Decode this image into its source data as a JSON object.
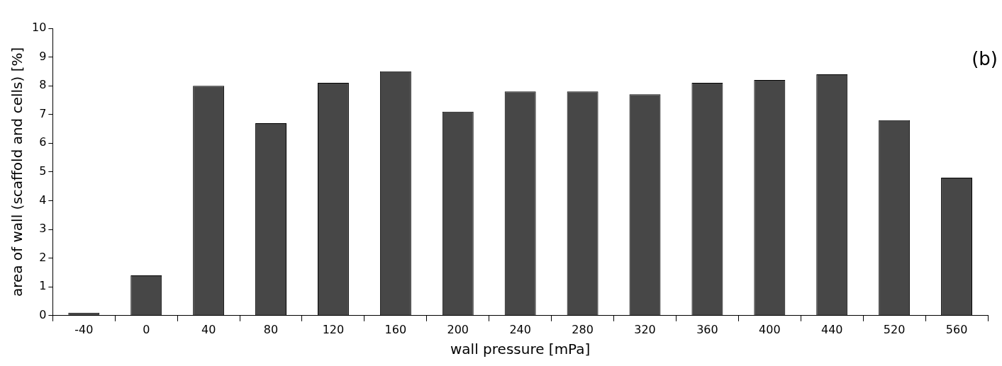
{
  "chart_data": {
    "type": "bar",
    "xlabel": "wall pressure [mPa]",
    "ylabel": "area of wall (scaffold and cells) [%]",
    "categories": [
      "-40",
      "0",
      "40",
      "80",
      "120",
      "160",
      "200",
      "240",
      "280",
      "320",
      "360",
      "400",
      "440",
      "520",
      "560"
    ],
    "values": [
      0.1,
      1.4,
      8.0,
      6.7,
      8.1,
      8.5,
      7.1,
      7.8,
      7.8,
      7.7,
      8.1,
      8.2,
      8.4,
      6.8,
      4.8
    ],
    "color": "#474747",
    "ylim": [
      0,
      10
    ],
    "yticks": [
      0,
      1,
      2,
      3,
      4,
      5,
      6,
      7,
      8,
      9,
      10
    ],
    "annotations": [
      "(b)"
    ],
    "grid": false,
    "legend": false
  }
}
